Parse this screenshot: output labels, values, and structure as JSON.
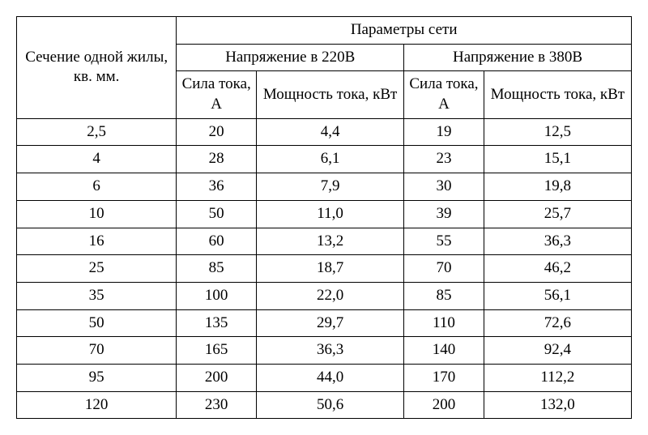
{
  "type": "table",
  "background_color": "#ffffff",
  "text_color": "#000000",
  "border_color": "#000000",
  "font_family": "Times New Roman",
  "header_fontsize": 19,
  "cell_fontsize": 19,
  "headers": {
    "section": "Сечение одной жилы, кв. мм.",
    "params": "Параметры сети",
    "voltage220": "Напряжение в 220В",
    "voltage380": "Напряжение в 380В",
    "current": "Сила тока, А",
    "power": "Мощность тока, кВт"
  },
  "columns": [
    {
      "key": "section",
      "align": "center",
      "width_pct": 26
    },
    {
      "key": "current_220",
      "align": "center",
      "width_pct": 13
    },
    {
      "key": "power_220",
      "align": "center",
      "width_pct": 24
    },
    {
      "key": "current_380",
      "align": "center",
      "width_pct": 13
    },
    {
      "key": "power_380",
      "align": "center",
      "width_pct": 24
    }
  ],
  "rows": [
    {
      "section": "2,5",
      "current_220": "20",
      "power_220": "4,4",
      "current_380": "19",
      "power_380": "12,5"
    },
    {
      "section": "4",
      "current_220": "28",
      "power_220": "6,1",
      "current_380": "23",
      "power_380": "15,1"
    },
    {
      "section": "6",
      "current_220": "36",
      "power_220": "7,9",
      "current_380": "30",
      "power_380": "19,8"
    },
    {
      "section": "10",
      "current_220": "50",
      "power_220": "11,0",
      "current_380": "39",
      "power_380": "25,7"
    },
    {
      "section": "16",
      "current_220": "60",
      "power_220": "13,2",
      "current_380": "55",
      "power_380": "36,3"
    },
    {
      "section": "25",
      "current_220": "85",
      "power_220": "18,7",
      "current_380": "70",
      "power_380": "46,2"
    },
    {
      "section": "35",
      "current_220": "100",
      "power_220": "22,0",
      "current_380": "85",
      "power_380": "56,1"
    },
    {
      "section": "50",
      "current_220": "135",
      "power_220": "29,7",
      "current_380": "110",
      "power_380": "72,6"
    },
    {
      "section": "70",
      "current_220": "165",
      "power_220": "36,3",
      "current_380": "140",
      "power_380": "92,4"
    },
    {
      "section": "95",
      "current_220": "200",
      "power_220": "44,0",
      "current_380": "170",
      "power_380": "112,2"
    },
    {
      "section": "120",
      "current_220": "230",
      "power_220": "50,6",
      "current_380": "200",
      "power_380": "132,0"
    }
  ]
}
